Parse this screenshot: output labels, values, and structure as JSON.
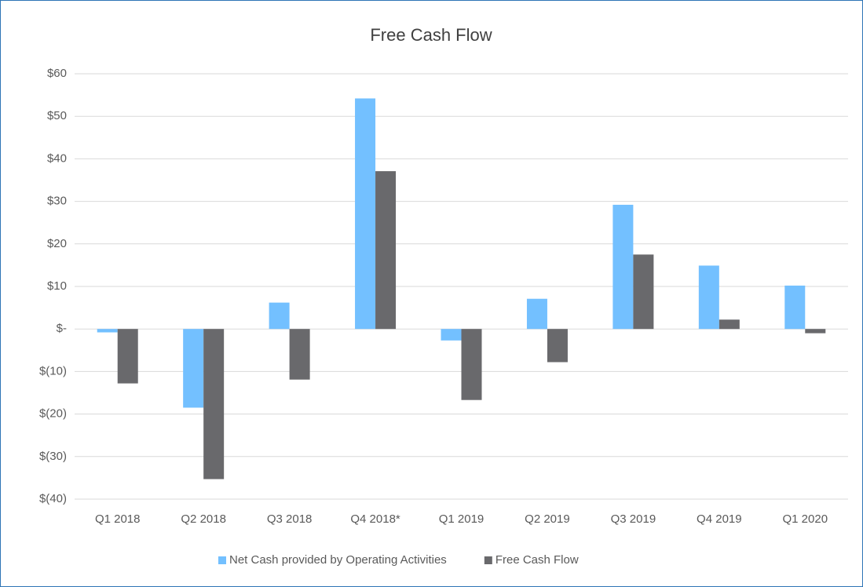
{
  "chart_data": {
    "type": "bar",
    "title": "Free Cash Flow",
    "categories": [
      "Q1 2018",
      "Q2 2018",
      "Q3 2018",
      "Q4 2018*",
      "Q1 2019",
      "Q2 2019",
      "Q3 2019",
      "Q4 2019",
      "Q1 2020"
    ],
    "series": [
      {
        "name": "Net Cash provided by Operating Activities",
        "color": "#73c0ff",
        "values": [
          -0.8,
          -18.5,
          6.2,
          54.2,
          -2.7,
          7.1,
          29.2,
          14.9,
          10.2
        ]
      },
      {
        "name": "Free Cash Flow",
        "color": "#69696c",
        "values": [
          -12.8,
          -35.3,
          -11.9,
          37.1,
          -16.7,
          -7.8,
          17.5,
          2.2,
          -1.0
        ]
      }
    ],
    "ylim": [
      -40,
      60
    ],
    "yticks": [
      {
        "value": -40,
        "label": "$(40)"
      },
      {
        "value": -30,
        "label": "$(30)"
      },
      {
        "value": -20,
        "label": "$(20)"
      },
      {
        "value": -10,
        "label": "$(10)"
      },
      {
        "value": 0,
        "label": "$-"
      },
      {
        "value": 10,
        "label": "$10"
      },
      {
        "value": 20,
        "label": "$20"
      },
      {
        "value": 30,
        "label": "$30"
      },
      {
        "value": 40,
        "label": "$40"
      },
      {
        "value": 50,
        "label": "$50"
      },
      {
        "value": 60,
        "label": "$60"
      }
    ],
    "grid": true,
    "legend": "bottom"
  }
}
